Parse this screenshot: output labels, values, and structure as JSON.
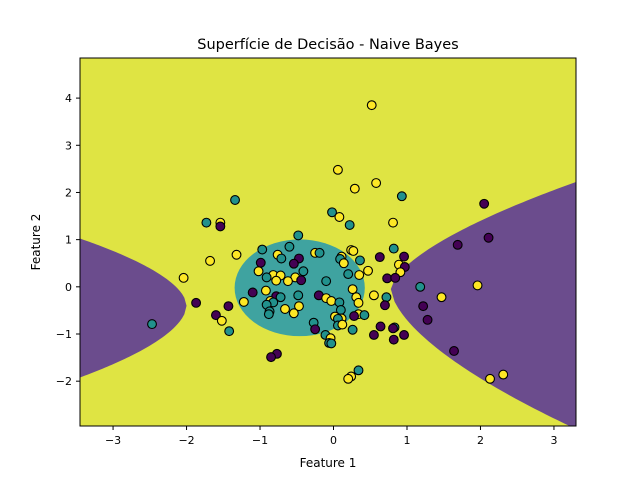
{
  "chart_data": {
    "type": "scatter",
    "title": "Superfície de Decisão - Naive Bayes",
    "xlabel": "Feature 1",
    "ylabel": "Feature 2",
    "xlim": [
      -3.45,
      3.3
    ],
    "ylim": [
      -2.95,
      4.85
    ],
    "xticks": [
      -3,
      -2,
      -1,
      0,
      1,
      2,
      3
    ],
    "xtick_labels": [
      "−3",
      "−2",
      "−1",
      "0",
      "1",
      "2",
      "3"
    ],
    "yticks": [
      -2,
      -1,
      0,
      1,
      2,
      3,
      4
    ],
    "ytick_labels": [
      "−2",
      "−1",
      "0",
      "1",
      "2",
      "3",
      "4"
    ],
    "grid": false,
    "colors": {
      "region_class0": "#6b4c8d",
      "region_class1": "#3fa3a0",
      "region_class2": "#dfe443",
      "point_class0": "#440154",
      "point_class1": "#21918c",
      "point_class2": "#fde725",
      "edge": "#000000"
    },
    "regions": [
      {
        "class": 0,
        "description": "purple region right: x > ~0.8 bounded by curve widening outward"
      },
      {
        "class": 0,
        "description": "purple region left: x < ~-2 bounded by curve"
      },
      {
        "class": 1,
        "description": "teal ellipse centered near (-0.5, 0)"
      },
      {
        "class": 2,
        "description": "yellow background elsewhere"
      }
    ],
    "points": [
      {
        "x": 0.52,
        "y": 3.85,
        "c": 2
      },
      {
        "x": 0.06,
        "y": 2.48,
        "c": 2
      },
      {
        "x": 0.58,
        "y": 2.2,
        "c": 2
      },
      {
        "x": 0.29,
        "y": 2.08,
        "c": 2
      },
      {
        "x": 0.93,
        "y": 1.92,
        "c": 1
      },
      {
        "x": 2.05,
        "y": 1.76,
        "c": 0
      },
      {
        "x": -1.34,
        "y": 1.84,
        "c": 1
      },
      {
        "x": -0.02,
        "y": 1.58,
        "c": 1
      },
      {
        "x": 0.08,
        "y": 1.48,
        "c": 2
      },
      {
        "x": 0.81,
        "y": 1.36,
        "c": 2
      },
      {
        "x": -1.73,
        "y": 1.36,
        "c": 1
      },
      {
        "x": -1.54,
        "y": 1.36,
        "c": 2
      },
      {
        "x": -1.54,
        "y": 1.28,
        "c": 0
      },
      {
        "x": 0.22,
        "y": 1.31,
        "c": 1
      },
      {
        "x": -0.48,
        "y": 1.09,
        "c": 1
      },
      {
        "x": 2.11,
        "y": 1.04,
        "c": 0
      },
      {
        "x": 1.69,
        "y": 0.89,
        "c": 0
      },
      {
        "x": -0.6,
        "y": 0.85,
        "c": 1
      },
      {
        "x": -0.97,
        "y": 0.79,
        "c": 1
      },
      {
        "x": 0.24,
        "y": 0.78,
        "c": 2
      },
      {
        "x": 0.27,
        "y": 0.76,
        "c": 2
      },
      {
        "x": 0.82,
        "y": 0.81,
        "c": 1
      },
      {
        "x": -0.25,
        "y": 0.72,
        "c": 2
      },
      {
        "x": -0.19,
        "y": 0.72,
        "c": 1
      },
      {
        "x": -1.32,
        "y": 0.68,
        "c": 2
      },
      {
        "x": -0.76,
        "y": 0.68,
        "c": 2
      },
      {
        "x": -0.71,
        "y": 0.6,
        "c": 1
      },
      {
        "x": 0.11,
        "y": 0.64,
        "c": 2
      },
      {
        "x": 0.09,
        "y": 0.59,
        "c": 1
      },
      {
        "x": 0.63,
        "y": 0.63,
        "c": 0
      },
      {
        "x": 0.96,
        "y": 0.64,
        "c": 0
      },
      {
        "x": -0.47,
        "y": 0.6,
        "c": 0
      },
      {
        "x": 0.36,
        "y": 0.56,
        "c": 1
      },
      {
        "x": -1.68,
        "y": 0.55,
        "c": 2
      },
      {
        "x": 0.14,
        "y": 0.5,
        "c": 2
      },
      {
        "x": -0.99,
        "y": 0.51,
        "c": 0
      },
      {
        "x": -0.54,
        "y": 0.49,
        "c": 0
      },
      {
        "x": 0.89,
        "y": 0.47,
        "c": 2
      },
      {
        "x": 0.97,
        "y": 0.42,
        "c": 0
      },
      {
        "x": -1.02,
        "y": 0.33,
        "c": 2
      },
      {
        "x": 0.47,
        "y": 0.34,
        "c": 2
      },
      {
        "x": 0.91,
        "y": 0.31,
        "c": 2
      },
      {
        "x": -0.41,
        "y": 0.33,
        "c": 1
      },
      {
        "x": 0.2,
        "y": 0.27,
        "c": 1
      },
      {
        "x": -0.82,
        "y": 0.25,
        "c": 2
      },
      {
        "x": -0.72,
        "y": 0.24,
        "c": 2
      },
      {
        "x": 0.35,
        "y": 0.25,
        "c": 2
      },
      {
        "x": -0.91,
        "y": 0.2,
        "c": 1
      },
      {
        "x": -0.52,
        "y": 0.2,
        "c": 2
      },
      {
        "x": 0.73,
        "y": 0.18,
        "c": 0
      },
      {
        "x": 0.84,
        "y": 0.19,
        "c": 0
      },
      {
        "x": -2.04,
        "y": 0.19,
        "c": 2
      },
      {
        "x": -0.78,
        "y": 0.13,
        "c": 2
      },
      {
        "x": -0.62,
        "y": 0.12,
        "c": 2
      },
      {
        "x": -0.44,
        "y": 0.14,
        "c": 0
      },
      {
        "x": -0.1,
        "y": 0.12,
        "c": 1
      },
      {
        "x": 1.18,
        "y": 0.0,
        "c": 1
      },
      {
        "x": 1.96,
        "y": 0.03,
        "c": 2
      },
      {
        "x": 0.26,
        "y": -0.05,
        "c": 2
      },
      {
        "x": -0.92,
        "y": -0.08,
        "c": 2
      },
      {
        "x": -1.1,
        "y": -0.12,
        "c": 0
      },
      {
        "x": -0.48,
        "y": -0.18,
        "c": 1
      },
      {
        "x": -0.2,
        "y": -0.18,
        "c": 0
      },
      {
        "x": 0.55,
        "y": -0.18,
        "c": 2
      },
      {
        "x": -0.78,
        "y": -0.2,
        "c": 0
      },
      {
        "x": -0.72,
        "y": -0.22,
        "c": 1
      },
      {
        "x": 0.72,
        "y": -0.22,
        "c": 1
      },
      {
        "x": 0.31,
        "y": -0.22,
        "c": 2
      },
      {
        "x": 1.47,
        "y": -0.22,
        "c": 2
      },
      {
        "x": -0.1,
        "y": -0.24,
        "c": 2
      },
      {
        "x": -0.03,
        "y": -0.3,
        "c": 2
      },
      {
        "x": -1.22,
        "y": -0.32,
        "c": 2
      },
      {
        "x": -0.86,
        "y": -0.3,
        "c": 2
      },
      {
        "x": -0.82,
        "y": -0.33,
        "c": 1
      },
      {
        "x": 0.08,
        "y": -0.33,
        "c": 1
      },
      {
        "x": 0.34,
        "y": -0.34,
        "c": 2
      },
      {
        "x": -1.87,
        "y": -0.34,
        "c": 0
      },
      {
        "x": -0.91,
        "y": -0.38,
        "c": 1
      },
      {
        "x": 0.7,
        "y": -0.39,
        "c": 0
      },
      {
        "x": -0.47,
        "y": -0.41,
        "c": 2
      },
      {
        "x": 1.22,
        "y": -0.41,
        "c": 0
      },
      {
        "x": -1.43,
        "y": -0.41,
        "c": 0
      },
      {
        "x": -0.66,
        "y": -0.47,
        "c": 2
      },
      {
        "x": 0.1,
        "y": -0.49,
        "c": 1
      },
      {
        "x": -0.87,
        "y": -0.52,
        "c": 1
      },
      {
        "x": -0.54,
        "y": -0.56,
        "c": 2
      },
      {
        "x": -0.88,
        "y": -0.58,
        "c": 1
      },
      {
        "x": 0.34,
        "y": -0.58,
        "c": 2
      },
      {
        "x": 0.28,
        "y": -0.62,
        "c": 0
      },
      {
        "x": 0.42,
        "y": -0.6,
        "c": 1
      },
      {
        "x": -1.6,
        "y": -0.6,
        "c": 0
      },
      {
        "x": 0.02,
        "y": -0.63,
        "c": 2
      },
      {
        "x": 0.11,
        "y": -0.67,
        "c": 2
      },
      {
        "x": 0.06,
        "y": -0.68,
        "c": 1
      },
      {
        "x": 1.28,
        "y": -0.7,
        "c": 0
      },
      {
        "x": -1.52,
        "y": -0.72,
        "c": 2
      },
      {
        "x": -0.27,
        "y": -0.76,
        "c": 1
      },
      {
        "x": 0.06,
        "y": -0.82,
        "c": 1
      },
      {
        "x": 0.12,
        "y": -0.8,
        "c": 2
      },
      {
        "x": 0.64,
        "y": -0.84,
        "c": 0
      },
      {
        "x": 0.83,
        "y": -0.86,
        "c": 1
      },
      {
        "x": 0.81,
        "y": -0.88,
        "c": 0
      },
      {
        "x": -0.25,
        "y": -0.9,
        "c": 0
      },
      {
        "x": 0.26,
        "y": -0.91,
        "c": 1
      },
      {
        "x": -1.42,
        "y": -0.94,
        "c": 1
      },
      {
        "x": -0.11,
        "y": -1.02,
        "c": 1
      },
      {
        "x": 0.55,
        "y": -1.02,
        "c": 0
      },
      {
        "x": 0.96,
        "y": -1.02,
        "c": 0
      },
      {
        "x": -0.04,
        "y": -1.09,
        "c": 2
      },
      {
        "x": 0.82,
        "y": -1.12,
        "c": 0
      },
      {
        "x": -0.06,
        "y": -1.19,
        "c": 1
      },
      {
        "x": -0.03,
        "y": -1.2,
        "c": 1
      },
      {
        "x": 1.64,
        "y": -1.36,
        "c": 0
      },
      {
        "x": -0.77,
        "y": -1.42,
        "c": 0
      },
      {
        "x": -0.85,
        "y": -1.49,
        "c": 0
      },
      {
        "x": 0.34,
        "y": -1.77,
        "c": 1
      },
      {
        "x": 2.31,
        "y": -1.86,
        "c": 2
      },
      {
        "x": 0.24,
        "y": -1.9,
        "c": 2
      },
      {
        "x": 0.2,
        "y": -1.95,
        "c": 2
      },
      {
        "x": 2.13,
        "y": -1.95,
        "c": 2
      },
      {
        "x": -2.47,
        "y": -0.79,
        "c": 1
      }
    ]
  }
}
